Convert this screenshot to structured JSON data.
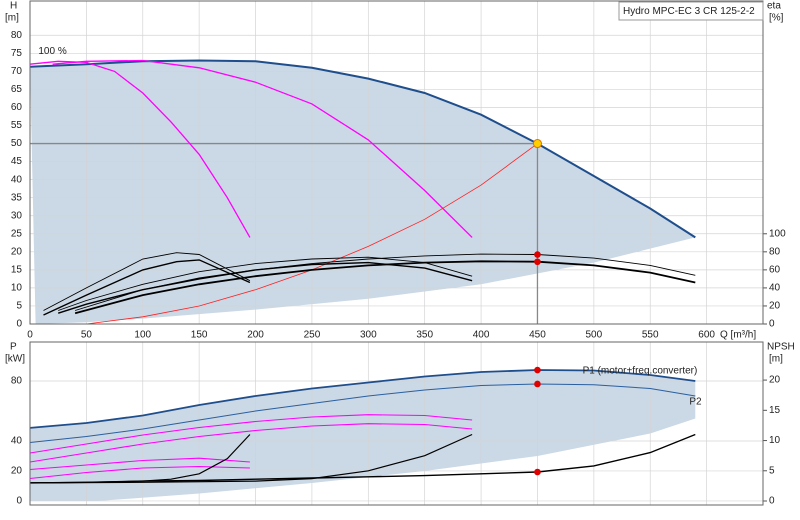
{
  "chart_data": [
    {
      "type": "line",
      "title": "Hydro MPC-EC 3 CR 125-2-2",
      "ylabel": "H",
      "yunit": "[m]",
      "y2label": "eta",
      "y2unit": "[%]",
      "xlabel": "Q [m³/h]",
      "xlim": [
        0,
        650
      ],
      "xticks": [
        0,
        50,
        100,
        150,
        200,
        250,
        300,
        350,
        400,
        450,
        500,
        550,
        600
      ],
      "ylim": [
        0,
        89.5
      ],
      "yticks": [
        0,
        5,
        10,
        15,
        20,
        25,
        30,
        35,
        40,
        45,
        50,
        55,
        60,
        65,
        70,
        75,
        80
      ],
      "y2lim": [
        0,
        358
      ],
      "y2ticks": [
        0,
        20,
        40,
        60,
        80,
        100
      ],
      "grid": true,
      "show_xtick_labels": true,
      "band_color": "#cbd8e5",
      "band_lower": {
        "x": [
          5,
          50,
          100,
          200,
          300,
          400,
          500,
          590
        ],
        "values": [
          0,
          0.5,
          1.5,
          4,
          7,
          11,
          17,
          24
        ]
      },
      "duty_point": {
        "x": 450,
        "y": 50
      },
      "marker_x": 450,
      "annotations": [
        {
          "text": "100 %",
          "x": 20,
          "y": 75.5
        }
      ],
      "series": [
        {
          "color": "#1f4e8c",
          "width": 2,
          "band": true,
          "x": [
            0,
            50,
            100,
            150,
            200,
            250,
            300,
            350,
            400,
            450,
            500,
            550,
            590
          ],
          "values": [
            71.3,
            72,
            72.8,
            73,
            72.8,
            71,
            68,
            64,
            58,
            50,
            41,
            32,
            24
          ]
        },
        {
          "color": "#ff00ff",
          "width": 1.3,
          "x": [
            0,
            25,
            50,
            75,
            100,
            125,
            150,
            175,
            195
          ],
          "values": [
            72,
            72.8,
            72.5,
            70,
            64,
            56,
            47,
            35,
            24
          ]
        },
        {
          "color": "#ff00ff",
          "width": 1.3,
          "x": [
            20,
            50,
            100,
            150,
            200,
            250,
            300,
            350,
            392
          ],
          "values": [
            72,
            72.8,
            73,
            71,
            67,
            61,
            51,
            37,
            24
          ]
        },
        {
          "color": "#ff2020",
          "width": 0.8,
          "x": [
            50,
            100,
            150,
            200,
            250,
            300,
            350,
            400,
            450
          ],
          "values": [
            0,
            2,
            5,
            9.5,
            15,
            21.5,
            29,
            38.5,
            50
          ]
        },
        {
          "color": "#000000",
          "width": 0.9,
          "axis": "y2",
          "dot": true,
          "x": [
            40,
            100,
            150,
            200,
            250,
            300,
            350,
            400,
            450,
            500,
            550,
            590
          ],
          "values": [
            15,
            38,
            51,
            60,
            67,
            72,
            75.5,
            77.5,
            77,
            73,
            65,
            54
          ]
        },
        {
          "color": "#000000",
          "width": 1.8,
          "axis": "y2",
          "dot": true,
          "x": [
            40,
            100,
            150,
            200,
            250,
            300,
            350,
            400,
            450,
            500,
            550,
            590
          ],
          "values": [
            12,
            32,
            44,
            53,
            60,
            65,
            68,
            69.5,
            69,
            65,
            57,
            46
          ]
        },
        {
          "color": "#000000",
          "width": 0.9,
          "axis": "y2",
          "x": [
            25,
            50,
            100,
            150,
            200,
            250,
            300,
            350,
            392
          ],
          "values": [
            15,
            26,
            44,
            58,
            67,
            72,
            74,
            68,
            53
          ]
        },
        {
          "color": "#000000",
          "width": 1.4,
          "axis": "y2",
          "x": [
            25,
            50,
            100,
            150,
            200,
            250,
            300,
            350,
            392
          ],
          "values": [
            12,
            22,
            38,
            50,
            60,
            66,
            68,
            62,
            48
          ]
        },
        {
          "color": "#000000",
          "width": 0.9,
          "axis": "y2",
          "x": [
            12,
            50,
            100,
            130,
            150,
            195
          ],
          "values": [
            15,
            40,
            72,
            79,
            77,
            48
          ]
        },
        {
          "color": "#000000",
          "width": 1.4,
          "axis": "y2",
          "x": [
            12,
            50,
            100,
            130,
            150,
            195
          ],
          "values": [
            10,
            32,
            60,
            69,
            71,
            46
          ]
        }
      ]
    },
    {
      "type": "line",
      "ylabel": "P",
      "yunit": "[kW]",
      "y2label": "NPSH",
      "y2unit": "[m]",
      "xlim": [
        0,
        650
      ],
      "xticks": [
        0,
        50,
        100,
        150,
        200,
        250,
        300,
        350,
        400,
        450,
        500,
        550,
        600
      ],
      "ylim": [
        -2.7,
        106
      ],
      "yticks": [
        0,
        20,
        40,
        80
      ],
      "y2lim": [
        -0.66,
        26.3
      ],
      "y2ticks": [
        0,
        5,
        10,
        15,
        20
      ],
      "grid": true,
      "show_xtick_labels": false,
      "band_color": "#cbd8e5",
      "band_lower": {
        "x": [
          0,
          60,
          150,
          250,
          350,
          450,
          550,
          590
        ],
        "values": [
          0,
          0,
          5,
          12,
          20,
          30,
          45,
          55
        ]
      },
      "marker_x": 450,
      "series": [
        {
          "name": "P1 (motor+freq.converter)",
          "label_side": "above",
          "color": "#1f4e8c",
          "width": 1.8,
          "band": true,
          "dot": true,
          "x": [
            0,
            50,
            100,
            150,
            200,
            250,
            300,
            350,
            400,
            450,
            500,
            550,
            590
          ],
          "values": [
            48.7,
            52,
            57,
            64,
            70,
            75,
            79,
            83,
            86,
            87.3,
            87,
            84,
            80
          ]
        },
        {
          "name": "P2",
          "label_side": "below",
          "color": "#2b5fa0",
          "width": 1,
          "dot": true,
          "x": [
            0,
            50,
            100,
            150,
            200,
            250,
            300,
            350,
            400,
            450,
            500,
            550,
            590
          ],
          "values": [
            39,
            43,
            48,
            54,
            60,
            65,
            70,
            74,
            77,
            78,
            77.5,
            75,
            70
          ]
        },
        {
          "color": "#ff00ff",
          "width": 1.1,
          "x": [
            0,
            50,
            100,
            150,
            200,
            250,
            300,
            350,
            392
          ],
          "values": [
            32,
            38,
            44,
            49,
            53,
            56,
            57.5,
            57,
            54
          ]
        },
        {
          "color": "#ff00ff",
          "width": 1.1,
          "x": [
            0,
            50,
            100,
            150,
            200,
            250,
            300,
            350,
            392
          ],
          "values": [
            26,
            32,
            38,
            43,
            47,
            50,
            51.5,
            51,
            48
          ]
        },
        {
          "color": "#ff00ff",
          "width": 1.1,
          "x": [
            0,
            50,
            100,
            150,
            195
          ],
          "values": [
            21,
            24,
            27,
            28.5,
            26
          ]
        },
        {
          "color": "#ff00ff",
          "width": 1.1,
          "x": [
            0,
            50,
            100,
            150,
            195
          ],
          "values": [
            15,
            19,
            22,
            23,
            22
          ]
        },
        {
          "color": "#000000",
          "width": 1.4,
          "axis": "y2",
          "dot": true,
          "x": [
            0,
            50,
            100,
            150,
            200,
            250,
            300,
            350,
            400,
            450,
            500,
            550,
            590
          ],
          "values": [
            3,
            3.1,
            3.3,
            3.4,
            3.6,
            3.8,
            4,
            4.2,
            4.5,
            4.8,
            5.8,
            8,
            11
          ]
        },
        {
          "color": "#000000",
          "width": 1.2,
          "axis": "y2",
          "x": [
            0,
            100,
            200,
            250,
            300,
            350,
            392
          ],
          "values": [
            3,
            3.1,
            3.3,
            3.7,
            5,
            7.5,
            11
          ]
        },
        {
          "color": "#000000",
          "width": 1.2,
          "axis": "y2",
          "x": [
            0,
            50,
            100,
            125,
            150,
            175,
            195
          ],
          "values": [
            3,
            3.1,
            3.3,
            3.6,
            4.5,
            7,
            11
          ]
        }
      ]
    }
  ]
}
